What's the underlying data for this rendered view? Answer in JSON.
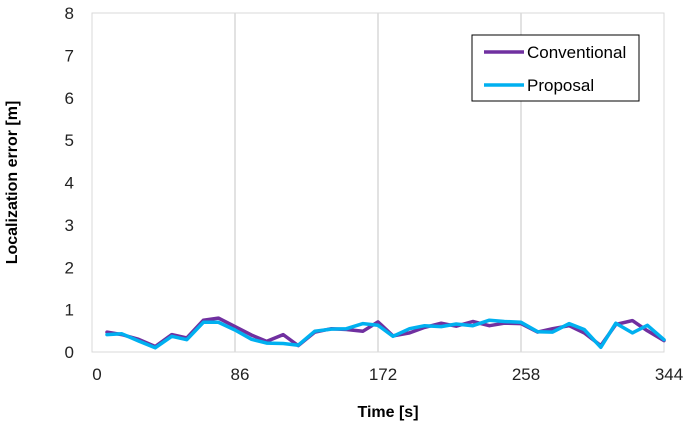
{
  "chart_data": {
    "type": "line",
    "xlabel": "Time [s]",
    "ylabel": "Localization error [m]",
    "xlim": [
      0,
      344
    ],
    "ylim": [
      0,
      8
    ],
    "xticks": [
      0,
      86,
      172,
      258,
      344
    ],
    "yticks": [
      0,
      1,
      2,
      3,
      4,
      5,
      6,
      7,
      8
    ],
    "grid": "vertical",
    "legend_position": "top-right",
    "series": [
      {
        "name": "Conventional",
        "color": "#7030A0",
        "x": [
          9,
          18,
          28,
          38,
          48,
          57,
          67,
          76,
          86,
          96,
          105,
          115,
          124,
          134,
          144,
          153,
          163,
          172,
          181,
          191,
          200,
          210,
          219,
          229,
          239,
          248,
          258,
          268,
          277,
          287,
          296,
          306,
          315,
          325,
          334,
          344
        ],
        "y": [
          0.47,
          0.41,
          0.3,
          0.13,
          0.41,
          0.33,
          0.75,
          0.8,
          0.6,
          0.4,
          0.25,
          0.41,
          0.15,
          0.47,
          0.55,
          0.53,
          0.49,
          0.71,
          0.38,
          0.45,
          0.58,
          0.68,
          0.61,
          0.72,
          0.62,
          0.68,
          0.67,
          0.47,
          0.55,
          0.62,
          0.45,
          0.15,
          0.65,
          0.74,
          0.5,
          0.27
        ]
      },
      {
        "name": "Proposal",
        "color": "#00B0F0",
        "x": [
          9,
          18,
          28,
          38,
          48,
          57,
          67,
          76,
          86,
          96,
          105,
          115,
          124,
          134,
          144,
          153,
          163,
          172,
          181,
          191,
          200,
          210,
          219,
          229,
          239,
          248,
          258,
          268,
          277,
          287,
          296,
          306,
          315,
          325,
          334,
          344
        ],
        "y": [
          0.41,
          0.43,
          0.26,
          0.1,
          0.37,
          0.29,
          0.7,
          0.7,
          0.52,
          0.3,
          0.21,
          0.2,
          0.16,
          0.49,
          0.54,
          0.55,
          0.67,
          0.63,
          0.37,
          0.55,
          0.62,
          0.6,
          0.66,
          0.62,
          0.75,
          0.72,
          0.7,
          0.48,
          0.47,
          0.67,
          0.53,
          0.11,
          0.68,
          0.45,
          0.63,
          0.29
        ]
      }
    ]
  }
}
